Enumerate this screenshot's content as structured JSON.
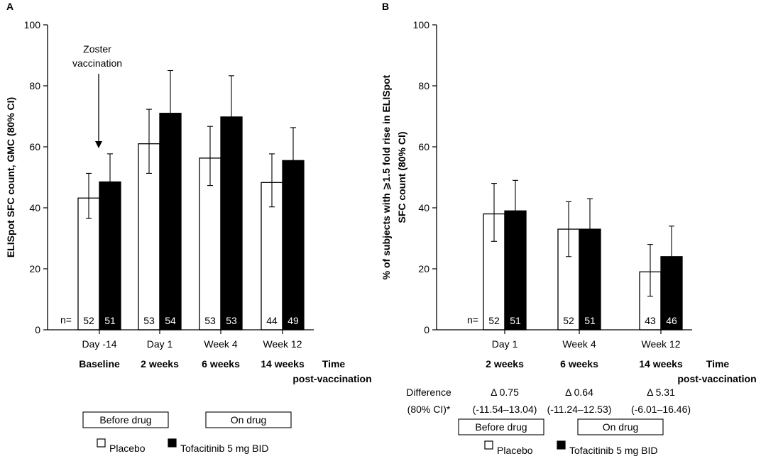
{
  "chart_data": [
    {
      "panel_label": "A",
      "type": "bar",
      "ylabel": "ELISpot SFC count, GMC (80% CI)",
      "ylim": [
        0,
        100
      ],
      "yticks": [
        0,
        20,
        40,
        60,
        80,
        100
      ],
      "categories": [
        "Day -14",
        "Day 1",
        "Week 4",
        "Week 12"
      ],
      "category_sublabels": [
        "Baseline",
        "2 weeks",
        "6 weeks",
        "14 weeks"
      ],
      "time_label_line1": "Time",
      "time_label_line2": "post-vaccination",
      "n_prefix": "n=",
      "series": [
        {
          "name": "Placebo",
          "color": "#ffffff",
          "values": [
            43.2,
            61.0,
            56.3,
            48.3
          ],
          "ci_low": [
            36.5,
            51.3,
            47.3,
            40.3
          ],
          "ci_high": [
            51.3,
            72.3,
            66.7,
            57.7
          ],
          "n": [
            "52",
            "53",
            "53",
            "44"
          ]
        },
        {
          "name": "Tofacitinib 5 mg BID",
          "color": "#000000",
          "values": [
            48.5,
            71.0,
            69.8,
            55.5
          ],
          "ci_low": [
            40.7,
            60.0,
            58.7,
            46.7
          ],
          "ci_high": [
            57.7,
            85.0,
            83.3,
            66.3
          ],
          "n": [
            "51",
            "54",
            "53",
            "49"
          ]
        }
      ],
      "annotation": {
        "lines": [
          "Zoster",
          "vaccination"
        ]
      },
      "phase_boxes": [
        "Before drug",
        "On drug"
      ],
      "legend": [
        "Placebo",
        "Tofacitinib 5 mg BID"
      ],
      "grid": false,
      "legend_placement": "bottom"
    },
    {
      "panel_label": "B",
      "type": "bar",
      "ylabel_line1": "% of subjects with ⩾1.5 fold rise in ELISpot",
      "ylabel_line2": "SFC count (80% CI)",
      "ylim": [
        0,
        100
      ],
      "yticks": [
        0,
        20,
        40,
        60,
        80,
        100
      ],
      "categories": [
        "Day 1",
        "Week 4",
        "Week 12"
      ],
      "category_sublabels": [
        "2 weeks",
        "6 weeks",
        "14 weeks"
      ],
      "time_label_line1": "Time",
      "time_label_line2": "post-vaccination",
      "n_prefix": "n=",
      "series": [
        {
          "name": "Placebo",
          "color": "#ffffff",
          "values": [
            38.0,
            33.0,
            19.0
          ],
          "ci_low": [
            29.0,
            24.0,
            11.0
          ],
          "ci_high": [
            48.0,
            42.0,
            28.0
          ],
          "n": [
            "52",
            "52",
            "43"
          ]
        },
        {
          "name": "Tofacitinib 5 mg BID",
          "color": "#000000",
          "values": [
            39.0,
            33.0,
            24.0
          ],
          "ci_low": [
            30.0,
            24.7,
            16.0
          ],
          "ci_high": [
            49.0,
            43.0,
            34.0
          ],
          "n": [
            "51",
            "51",
            "46"
          ]
        }
      ],
      "difference_label_line1": "Difference",
      "difference_label_line2": "(80% CI)*",
      "differences": [
        "Δ 0.75",
        "Δ 0.64",
        "Δ 5.31"
      ],
      "difference_cis": [
        "(-11.54–13.04)",
        "(-11.24–12.53)",
        "(-6.01–16.46)"
      ],
      "phase_boxes": [
        "Before drug",
        "On drug"
      ],
      "legend": [
        "Placebo",
        "Tofacitinib 5 mg BID"
      ],
      "grid": false,
      "legend_placement": "bottom"
    }
  ]
}
